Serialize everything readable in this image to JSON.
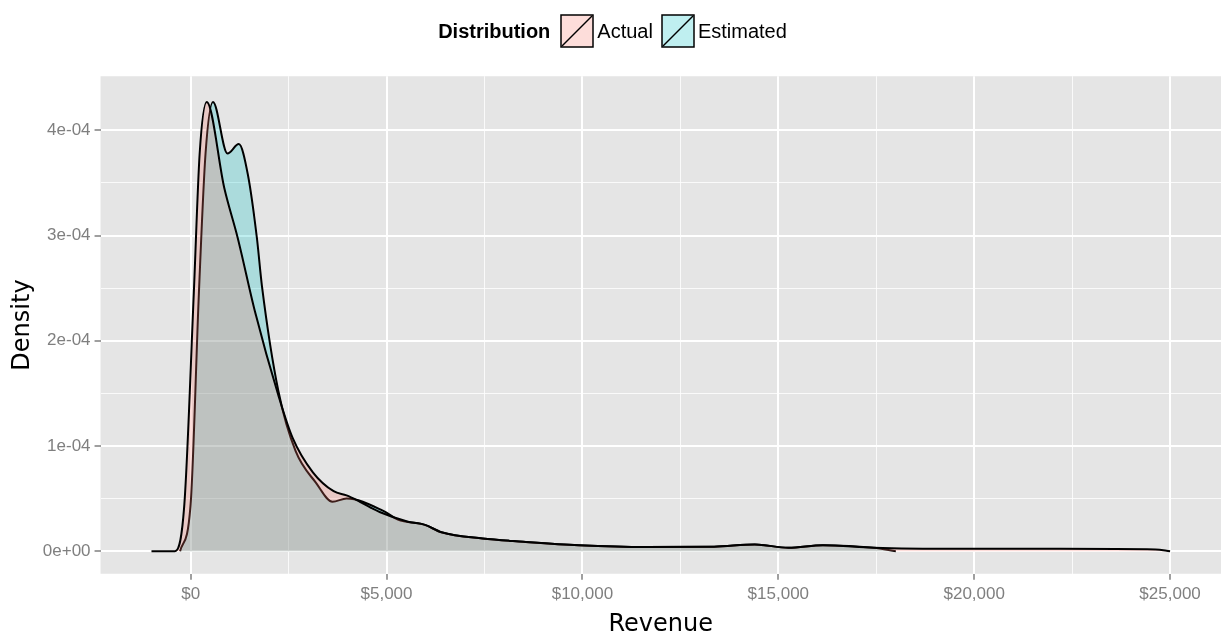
{
  "chart_data": {
    "type": "area",
    "xlabel": "Revenue",
    "ylabel": "Density",
    "legend_title": "Distribution",
    "legend": "top",
    "series": [
      {
        "name": "Actual",
        "color": "#f8766d",
        "x": [
          -1000,
          -400,
          -160,
          80,
          230,
          410,
          860,
          1200,
          1640,
          2240,
          2600,
          3120,
          3650,
          3980,
          4320,
          4840,
          5550,
          5980,
          6400,
          7450,
          8490,
          9900,
          11620,
          13360,
          14400,
          15260,
          16140,
          17440,
          19600,
          22200,
          24630,
          25000
        ],
        "values": [
          0,
          0,
          4.5e-05,
          0.000245,
          0.000378,
          0.000427,
          0.000345,
          0.000298,
          0.000228,
          0.000148,
          0.000108,
          7.5e-05,
          5.7e-05,
          5.3e-05,
          4.7e-05,
          3.7e-05,
          2.8e-05,
          2.5e-05,
          1.8e-05,
          1.2e-05,
          9e-06,
          5.7e-06,
          4e-06,
          4.3e-06,
          6.3e-06,
          3.3e-06,
          5.7e-06,
          3.3e-06,
          2.3e-06,
          2.3e-06,
          1.7e-06,
          0
        ]
      },
      {
        "name": "Estimated",
        "color": "#00bfc4",
        "x": [
          -270,
          0,
          210,
          380,
          570,
          940,
          1230,
          1460,
          1690,
          1820,
          2240,
          2680,
          3200,
          3620,
          3980,
          4930,
          5290,
          5980,
          6400,
          7450,
          8490,
          9900,
          11620,
          13360,
          14400,
          15260,
          16140,
          17440,
          18000
        ],
        "values": [
          0,
          4.5e-05,
          0.000245,
          0.000378,
          0.000427,
          0.000378,
          0.000387,
          0.000358,
          0.000298,
          0.000252,
          0.000152,
          9.5e-05,
          6.5e-05,
          4.7e-05,
          5e-05,
          3.8e-05,
          3e-05,
          2.5e-05,
          1.8e-05,
          1.2e-05,
          9e-06,
          5.7e-06,
          4e-06,
          4.3e-06,
          6.3e-06,
          3.3e-06,
          5.7e-06,
          3.3e-06,
          0
        ]
      }
    ],
    "xlim": [
      -2300,
      26300
    ],
    "ylim": [
      -2.15e-05,
      0.0004515
    ],
    "xticks": [
      {
        "value": 0,
        "label": "$0"
      },
      {
        "value": 2500,
        "label": null
      },
      {
        "value": 5000,
        "label": "$5,000"
      },
      {
        "value": 7500,
        "label": null
      },
      {
        "value": 10000,
        "label": "$10,000"
      },
      {
        "value": 12500,
        "label": null
      },
      {
        "value": 15000,
        "label": "$15,000"
      },
      {
        "value": 17500,
        "label": null
      },
      {
        "value": 20000,
        "label": "$20,000"
      },
      {
        "value": 22500,
        "label": null
      },
      {
        "value": 25000,
        "label": "$25,000"
      }
    ],
    "yticks": [
      {
        "value": 0,
        "label": "0e+00"
      },
      {
        "value": 5e-05,
        "label": null
      },
      {
        "value": 0.0001,
        "label": "1e-04"
      },
      {
        "value": 0.00015,
        "label": null
      },
      {
        "value": 0.0002,
        "label": "2e-04"
      },
      {
        "value": 0.00025,
        "label": null
      },
      {
        "value": 0.0003,
        "label": "3e-04"
      },
      {
        "value": 0.00035,
        "label": null
      },
      {
        "value": 0.0004,
        "label": "4e-04"
      }
    ],
    "grid": true
  }
}
